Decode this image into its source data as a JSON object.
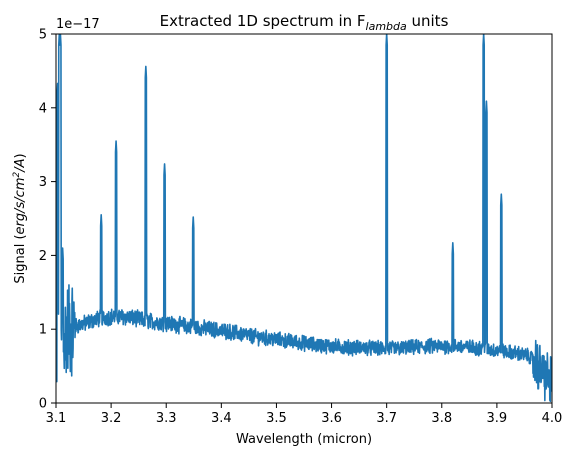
{
  "chart_data": {
    "type": "line",
    "title": "Extracted 1D spectrum in F",
    "title_subscript": "lambda",
    "title_suffix": " units",
    "xlabel": "Wavelength (micron)",
    "ylabel_prefix": "Signal (",
    "ylabel_math": "erg/s/cm",
    "ylabel_sup": "2",
    "ylabel_math_suffix": "/A",
    "ylabel_suffix": ")",
    "y_offset_label": "1e−17",
    "xlim": [
      3.1,
      4.0
    ],
    "ylim": [
      0,
      5
    ],
    "y_scale_factor": 1e-17,
    "xticks": [
      3.1,
      3.2,
      3.3,
      3.4,
      3.5,
      3.6,
      3.7,
      3.8,
      3.9,
      4.0
    ],
    "xtick_labels": [
      "3.1",
      "3.2",
      "3.3",
      "3.4",
      "3.5",
      "3.6",
      "3.7",
      "3.8",
      "3.9",
      "4.0"
    ],
    "yticks": [
      0,
      1,
      2,
      3,
      4,
      5
    ],
    "ytick_labels": [
      "0",
      "1",
      "2",
      "3",
      "4",
      "5"
    ],
    "grid": false,
    "line_color": "#1f77b4",
    "continuum": [
      [
        3.1,
        0.5
      ],
      [
        3.11,
        0.8
      ],
      [
        3.12,
        1.0
      ],
      [
        3.14,
        1.05
      ],
      [
        3.16,
        1.1
      ],
      [
        3.18,
        1.15
      ],
      [
        3.2,
        1.17
      ],
      [
        3.22,
        1.17
      ],
      [
        3.24,
        1.15
      ],
      [
        3.26,
        1.12
      ],
      [
        3.28,
        1.1
      ],
      [
        3.3,
        1.08
      ],
      [
        3.32,
        1.06
      ],
      [
        3.34,
        1.04
      ],
      [
        3.36,
        1.02
      ],
      [
        3.38,
        1.0
      ],
      [
        3.4,
        0.98
      ],
      [
        3.42,
        0.96
      ],
      [
        3.44,
        0.93
      ],
      [
        3.46,
        0.9
      ],
      [
        3.48,
        0.88
      ],
      [
        3.5,
        0.86
      ],
      [
        3.52,
        0.84
      ],
      [
        3.54,
        0.82
      ],
      [
        3.56,
        0.8
      ],
      [
        3.58,
        0.78
      ],
      [
        3.6,
        0.77
      ],
      [
        3.62,
        0.76
      ],
      [
        3.64,
        0.75
      ],
      [
        3.66,
        0.75
      ],
      [
        3.68,
        0.74
      ],
      [
        3.7,
        0.74
      ],
      [
        3.72,
        0.74
      ],
      [
        3.74,
        0.75
      ],
      [
        3.76,
        0.76
      ],
      [
        3.78,
        0.77
      ],
      [
        3.8,
        0.77
      ],
      [
        3.82,
        0.77
      ],
      [
        3.84,
        0.76
      ],
      [
        3.86,
        0.75
      ],
      [
        3.88,
        0.73
      ],
      [
        3.9,
        0.71
      ],
      [
        3.92,
        0.69
      ],
      [
        3.94,
        0.67
      ],
      [
        3.96,
        0.63
      ],
      [
        3.97,
        0.55
      ],
      [
        3.98,
        0.45
      ],
      [
        3.99,
        0.35
      ],
      [
        4.0,
        0.3
      ]
    ],
    "emission_lines": [
      {
        "x": 3.103,
        "peak": 4.33
      },
      {
        "x": 3.106,
        "peak": 5.0
      },
      {
        "x": 3.108,
        "peak": 5.0
      },
      {
        "x": 3.112,
        "peak": 2.1
      },
      {
        "x": 3.182,
        "peak": 2.55
      },
      {
        "x": 3.209,
        "peak": 3.55
      },
      {
        "x": 3.263,
        "peak": 4.56
      },
      {
        "x": 3.297,
        "peak": 3.24
      },
      {
        "x": 3.349,
        "peak": 2.52
      },
      {
        "x": 3.7,
        "peak": 5.0
      },
      {
        "x": 3.82,
        "peak": 2.17
      },
      {
        "x": 3.876,
        "peak": 5.0
      },
      {
        "x": 3.881,
        "peak": 4.09
      },
      {
        "x": 3.908,
        "peak": 2.83
      }
    ]
  }
}
